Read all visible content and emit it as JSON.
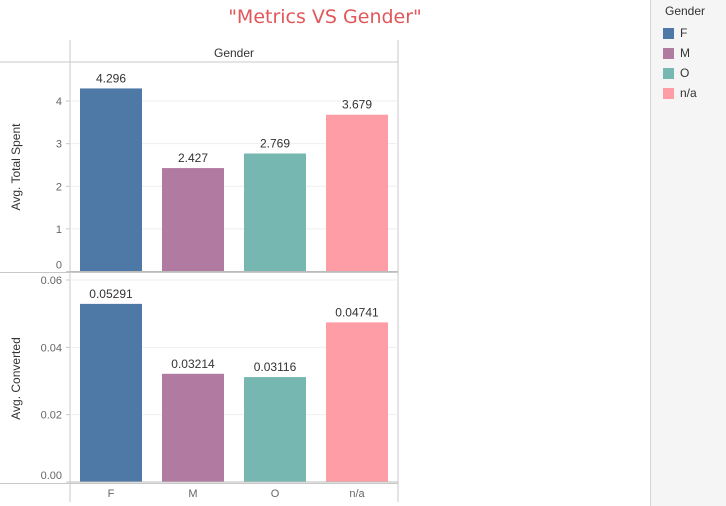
{
  "title": "\"Metrics VS Gender\"",
  "header_label": "Gender",
  "legend": {
    "title": "Gender",
    "items": [
      {
        "label": "F",
        "color": "#4e79a7"
      },
      {
        "label": "M",
        "color": "#b07aa1"
      },
      {
        "label": "O",
        "color": "#76b7b2"
      },
      {
        "label": "n/a",
        "color": "#ff9da7"
      }
    ]
  },
  "chart_data": [
    {
      "type": "bar",
      "ylabel": "Avg. Total Spent",
      "categories": [
        "F",
        "M",
        "O",
        "n/a"
      ],
      "values": [
        4.296,
        2.427,
        2.769,
        3.679
      ],
      "value_labels": [
        "4.296",
        "2.427",
        "2.769",
        "3.679"
      ],
      "ylim": [
        0,
        4.4
      ],
      "yticks": [
        0,
        1,
        2,
        3,
        4
      ],
      "ytick_labels": [
        "0",
        "1",
        "2",
        "3",
        "4"
      ]
    },
    {
      "type": "bar",
      "ylabel": "Avg. Converted",
      "categories": [
        "F",
        "M",
        "O",
        "n/a"
      ],
      "values": [
        0.05291,
        0.03214,
        0.03116,
        0.04741
      ],
      "value_labels": [
        "0.05291",
        "0.03214",
        "0.03116",
        "0.04741"
      ],
      "ylim": [
        0,
        0.06
      ],
      "yticks": [
        0,
        0.02,
        0.04,
        0.06
      ],
      "ytick_labels": [
        "0.00",
        "0.02",
        "0.04",
        "0.06"
      ]
    }
  ]
}
